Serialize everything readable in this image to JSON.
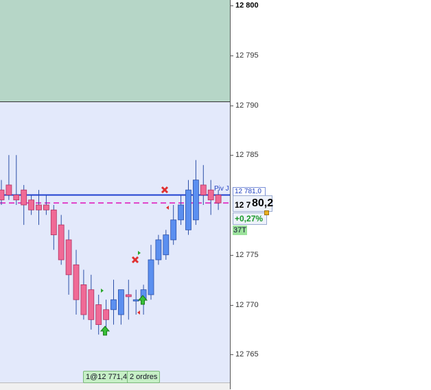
{
  "price_axis": {
    "ticks": [
      {
        "label": "12 800",
        "value": 12800,
        "bold": true
      },
      {
        "label": "12 795",
        "value": 12795
      },
      {
        "label": "12 790",
        "value": 12790
      },
      {
        "label": "12 785",
        "value": 12785
      },
      {
        "label": "12 775",
        "value": 12775
      },
      {
        "label": "12 770",
        "value": 12770
      },
      {
        "label": "12 765",
        "value": 12765
      }
    ]
  },
  "pivot": {
    "label": "Piv J",
    "tag": "12 781,0",
    "value": 12781.0,
    "color": "#1f3fd0"
  },
  "current_price": {
    "main": "12 7",
    "big": "80,2",
    "value": 12780.2
  },
  "change": {
    "text": "+0,27%",
    "color": "#1a9a2a"
  },
  "tick_count": {
    "text": "37T"
  },
  "orders": {
    "position_label": "1@12 771,4",
    "count_label": "2 ordres"
  },
  "resistance_zone": {
    "from": 12790,
    "to": 12800,
    "color": "#b6d6c7"
  },
  "colors": {
    "up": "#5b8ff0",
    "down": "#f06a96",
    "wick": "#2b4fa8",
    "current_line": "#e040c8"
  },
  "chart_data": {
    "type": "candlestick",
    "candles": [
      {
        "o": 12781.5,
        "h": 12782.5,
        "l": 12780.0,
        "c": 12780.5
      },
      {
        "o": 12782.0,
        "h": 12785.0,
        "l": 12780.5,
        "c": 12781.0
      },
      {
        "o": 12781.0,
        "h": 12785.0,
        "l": 12780.0,
        "c": 12780.5
      },
      {
        "o": 12781.5,
        "h": 12782.0,
        "l": 12778.0,
        "c": 12780.0
      },
      {
        "o": 12780.5,
        "h": 12781.0,
        "l": 12779.0,
        "c": 12779.5
      },
      {
        "o": 12780.0,
        "h": 12781.5,
        "l": 12778.0,
        "c": 12779.5
      },
      {
        "o": 12780.0,
        "h": 12781.0,
        "l": 12779.0,
        "c": 12779.5
      },
      {
        "o": 12779.5,
        "h": 12780.0,
        "l": 12775.5,
        "c": 12777.0
      },
      {
        "o": 12778.0,
        "h": 12779.0,
        "l": 12774.0,
        "c": 12774.5
      },
      {
        "o": 12776.5,
        "h": 12777.5,
        "l": 12771.0,
        "c": 12773.0
      },
      {
        "o": 12774.0,
        "h": 12775.5,
        "l": 12769.0,
        "c": 12770.5
      },
      {
        "o": 12772.0,
        "h": 12773.5,
        "l": 12768.5,
        "c": 12769.0
      },
      {
        "o": 12771.5,
        "h": 12773.0,
        "l": 12767.5,
        "c": 12768.5
      },
      {
        "o": 12770.0,
        "h": 12771.0,
        "l": 12767.0,
        "c": 12768.0
      },
      {
        "o": 12769.5,
        "h": 12770.5,
        "l": 12767.5,
        "c": 12768.5
      },
      {
        "o": 12769.5,
        "h": 12772.5,
        "l": 12768.0,
        "c": 12770.5
      },
      {
        "o": 12769.0,
        "h": 12771.5,
        "l": 12768.0,
        "c": 12771.5
      },
      {
        "o": 12771.0,
        "h": 12772.5,
        "l": 12768.5,
        "c": 12770.8
      },
      {
        "o": 12770.5,
        "h": 12771.5,
        "l": 12769.0,
        "c": 12770.5
      },
      {
        "o": 12770.5,
        "h": 12772.0,
        "l": 12769.0,
        "c": 12771.5
      },
      {
        "o": 12771.0,
        "h": 12776.0,
        "l": 12770.5,
        "c": 12774.5
      },
      {
        "o": 12774.5,
        "h": 12777.0,
        "l": 12774.0,
        "c": 12776.5
      },
      {
        "o": 12775.0,
        "h": 12777.5,
        "l": 12774.5,
        "c": 12777.0
      },
      {
        "o": 12776.5,
        "h": 12780.0,
        "l": 12776.0,
        "c": 12778.5
      },
      {
        "o": 12778.5,
        "h": 12781.0,
        "l": 12778.0,
        "c": 12780.0
      },
      {
        "o": 12777.5,
        "h": 12782.5,
        "l": 12777.0,
        "c": 12781.5
      },
      {
        "o": 12778.5,
        "h": 12784.5,
        "l": 12778.0,
        "c": 12782.5
      },
      {
        "o": 12782.0,
        "h": 12784.0,
        "l": 12780.0,
        "c": 12781.0
      },
      {
        "o": 12781.5,
        "h": 12782.5,
        "l": 12779.0,
        "c": 12780.5
      },
      {
        "o": 12781.0,
        "h": 12781.5,
        "l": 12779.5,
        "c": 12780.2
      }
    ]
  }
}
